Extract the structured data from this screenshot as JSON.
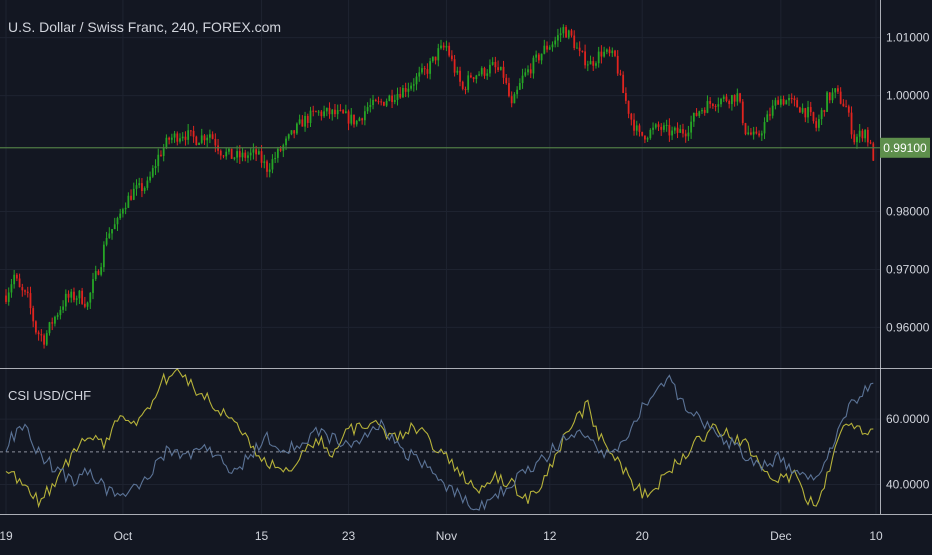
{
  "colors": {
    "background": "#131722",
    "grid": "#1e2330",
    "axis_text": "#d1d4dc",
    "up": "#26a626",
    "down": "#e0241f",
    "price_line": "#4f7a45",
    "price_badge": "#5e8f4c",
    "csi_series_1": "#b6b23a",
    "csi_series_2": "#5b7396",
    "separator": "#d1d4dc"
  },
  "chart_data": [
    {
      "type": "candlestick",
      "title": "U.S. Dollar / Swiss Franc, 240, FOREX.com",
      "last_price_label": "0.99100",
      "last_price": 0.991,
      "ylim": [
        0.953,
        1.0165
      ],
      "y_ticks": [
        {
          "value": 0.96,
          "label": "0.96000"
        },
        {
          "value": 0.97,
          "label": "0.97000"
        },
        {
          "value": 0.98,
          "label": "0.98000"
        },
        {
          "value": 1.0,
          "label": "1.00000"
        },
        {
          "value": 1.01,
          "label": "1.01000"
        }
      ],
      "x_ticks": [
        "19",
        "Oct",
        "15",
        "23",
        "Nov",
        "12",
        "20",
        "Dec",
        "10"
      ],
      "x_tick_index": [
        0,
        43,
        94,
        126,
        162,
        200,
        234,
        285,
        320
      ],
      "series": [
        {
          "x": 0,
          "y": 0.9655
        },
        {
          "x": 3,
          "y": 0.969
        },
        {
          "x": 5,
          "y": 0.9665
        },
        {
          "x": 8,
          "y": 0.965
        },
        {
          "x": 11,
          "y": 0.9595
        },
        {
          "x": 14,
          "y": 0.958
        },
        {
          "x": 17,
          "y": 0.961
        },
        {
          "x": 22,
          "y": 0.965
        },
        {
          "x": 27,
          "y": 0.9655
        },
        {
          "x": 30,
          "y": 0.964
        },
        {
          "x": 32,
          "y": 0.9675
        },
        {
          "x": 35,
          "y": 0.9715
        },
        {
          "x": 37,
          "y": 0.976
        },
        {
          "x": 41,
          "y": 0.978
        },
        {
          "x": 43,
          "y": 0.981
        },
        {
          "x": 47,
          "y": 0.9835
        },
        {
          "x": 52,
          "y": 0.9845
        },
        {
          "x": 56,
          "y": 0.9895
        },
        {
          "x": 60,
          "y": 0.9925
        },
        {
          "x": 65,
          "y": 0.9935
        },
        {
          "x": 70,
          "y": 0.9925
        },
        {
          "x": 75,
          "y": 0.9935
        },
        {
          "x": 79,
          "y": 0.9905
        },
        {
          "x": 83,
          "y": 0.9895
        },
        {
          "x": 87,
          "y": 0.9895
        },
        {
          "x": 92,
          "y": 0.99
        },
        {
          "x": 96,
          "y": 0.9875
        },
        {
          "x": 100,
          "y": 0.99
        },
        {
          "x": 104,
          "y": 0.9925
        },
        {
          "x": 109,
          "y": 0.9955
        },
        {
          "x": 114,
          "y": 0.997
        },
        {
          "x": 119,
          "y": 0.997
        },
        {
          "x": 124,
          "y": 0.9965
        },
        {
          "x": 129,
          "y": 0.9955
        },
        {
          "x": 133,
          "y": 0.998
        },
        {
          "x": 137,
          "y": 0.9985
        },
        {
          "x": 142,
          "y": 1.0
        },
        {
          "x": 146,
          "y": 1.001
        },
        {
          "x": 150,
          "y": 1.0025
        },
        {
          "x": 155,
          "y": 1.0045
        },
        {
          "x": 159,
          "y": 1.0075
        },
        {
          "x": 162,
          "y": 1.0085
        },
        {
          "x": 165,
          "y": 1.0045
        },
        {
          "x": 168,
          "y": 1.001
        },
        {
          "x": 171,
          "y": 1.0035
        },
        {
          "x": 175,
          "y": 1.004
        },
        {
          "x": 179,
          "y": 1.005
        },
        {
          "x": 183,
          "y": 1.0035
        },
        {
          "x": 186,
          "y": 0.998
        },
        {
          "x": 190,
          "y": 1.003
        },
        {
          "x": 194,
          "y": 1.0055
        },
        {
          "x": 198,
          "y": 1.008
        },
        {
          "x": 202,
          "y": 1.0095
        },
        {
          "x": 205,
          "y": 1.0115
        },
        {
          "x": 208,
          "y": 1.01
        },
        {
          "x": 211,
          "y": 1.007
        },
        {
          "x": 215,
          "y": 1.0055
        },
        {
          "x": 219,
          "y": 1.0075
        },
        {
          "x": 224,
          "y": 1.0065
        },
        {
          "x": 227,
          "y": 1.0005
        },
        {
          "x": 230,
          "y": 0.996
        },
        {
          "x": 233,
          "y": 0.993
        },
        {
          "x": 236,
          "y": 0.9935
        },
        {
          "x": 240,
          "y": 0.9945
        },
        {
          "x": 245,
          "y": 0.9935
        },
        {
          "x": 250,
          "y": 0.994
        },
        {
          "x": 255,
          "y": 0.9975
        },
        {
          "x": 260,
          "y": 0.999
        },
        {
          "x": 265,
          "y": 0.9995
        },
        {
          "x": 269,
          "y": 1.0
        },
        {
          "x": 272,
          "y": 0.994
        },
        {
          "x": 276,
          "y": 0.9925
        },
        {
          "x": 280,
          "y": 0.996
        },
        {
          "x": 284,
          "y": 0.9995
        },
        {
          "x": 288,
          "y": 0.999
        },
        {
          "x": 292,
          "y": 0.998
        },
        {
          "x": 295,
          "y": 0.997
        },
        {
          "x": 298,
          "y": 0.9945
        },
        {
          "x": 302,
          "y": 0.9995
        },
        {
          "x": 305,
          "y": 1.0005
        },
        {
          "x": 309,
          "y": 0.998
        },
        {
          "x": 312,
          "y": 0.9925
        },
        {
          "x": 316,
          "y": 0.994
        },
        {
          "x": 318,
          "y": 0.991
        },
        {
          "x": 319,
          "y": 0.9895
        }
      ],
      "candle_count": 320
    },
    {
      "type": "line",
      "title": "CSI USD/CHF",
      "ylim": [
        31,
        75
      ],
      "reference_line": 50,
      "y_ticks": [
        {
          "value": 40,
          "label": "40.0000"
        },
        {
          "value": 60,
          "label": "60.0000"
        }
      ],
      "series": [
        {
          "color_key": "csi_series_1",
          "points": [
            {
              "x": 0,
              "y": 46
            },
            {
              "x": 6,
              "y": 39
            },
            {
              "x": 12,
              "y": 35
            },
            {
              "x": 18,
              "y": 40
            },
            {
              "x": 24,
              "y": 49
            },
            {
              "x": 30,
              "y": 56
            },
            {
              "x": 36,
              "y": 52
            },
            {
              "x": 42,
              "y": 62
            },
            {
              "x": 48,
              "y": 59
            },
            {
              "x": 54,
              "y": 64
            },
            {
              "x": 58,
              "y": 72
            },
            {
              "x": 62,
              "y": 74
            },
            {
              "x": 66,
              "y": 73
            },
            {
              "x": 72,
              "y": 67
            },
            {
              "x": 78,
              "y": 64
            },
            {
              "x": 84,
              "y": 58
            },
            {
              "x": 90,
              "y": 52
            },
            {
              "x": 96,
              "y": 47
            },
            {
              "x": 102,
              "y": 43
            },
            {
              "x": 108,
              "y": 48
            },
            {
              "x": 114,
              "y": 54
            },
            {
              "x": 120,
              "y": 50
            },
            {
              "x": 126,
              "y": 56
            },
            {
              "x": 132,
              "y": 59
            },
            {
              "x": 138,
              "y": 57
            },
            {
              "x": 144,
              "y": 54
            },
            {
              "x": 150,
              "y": 58
            },
            {
              "x": 156,
              "y": 53
            },
            {
              "x": 162,
              "y": 48
            },
            {
              "x": 168,
              "y": 43
            },
            {
              "x": 174,
              "y": 39
            },
            {
              "x": 180,
              "y": 42
            },
            {
              "x": 186,
              "y": 40
            },
            {
              "x": 192,
              "y": 36
            },
            {
              "x": 198,
              "y": 41
            },
            {
              "x": 204,
              "y": 52
            },
            {
              "x": 210,
              "y": 61
            },
            {
              "x": 214,
              "y": 64
            },
            {
              "x": 218,
              "y": 55
            },
            {
              "x": 224,
              "y": 48
            },
            {
              "x": 230,
              "y": 41
            },
            {
              "x": 236,
              "y": 36
            },
            {
              "x": 242,
              "y": 42
            },
            {
              "x": 248,
              "y": 48
            },
            {
              "x": 254,
              "y": 53
            },
            {
              "x": 260,
              "y": 57
            },
            {
              "x": 266,
              "y": 55
            },
            {
              "x": 272,
              "y": 52
            },
            {
              "x": 278,
              "y": 46
            },
            {
              "x": 284,
              "y": 41
            },
            {
              "x": 290,
              "y": 43
            },
            {
              "x": 294,
              "y": 36
            },
            {
              "x": 298,
              "y": 33
            },
            {
              "x": 302,
              "y": 42
            },
            {
              "x": 306,
              "y": 53
            },
            {
              "x": 310,
              "y": 59
            },
            {
              "x": 314,
              "y": 56
            },
            {
              "x": 319,
              "y": 57
            }
          ]
        },
        {
          "color_key": "csi_series_2",
          "points": [
            {
              "x": 0,
              "y": 52
            },
            {
              "x": 6,
              "y": 58
            },
            {
              "x": 12,
              "y": 50
            },
            {
              "x": 18,
              "y": 45
            },
            {
              "x": 24,
              "y": 41
            },
            {
              "x": 30,
              "y": 44
            },
            {
              "x": 36,
              "y": 39
            },
            {
              "x": 42,
              "y": 36
            },
            {
              "x": 48,
              "y": 39
            },
            {
              "x": 54,
              "y": 45
            },
            {
              "x": 60,
              "y": 51
            },
            {
              "x": 66,
              "y": 48
            },
            {
              "x": 72,
              "y": 52
            },
            {
              "x": 78,
              "y": 48
            },
            {
              "x": 84,
              "y": 44
            },
            {
              "x": 90,
              "y": 49
            },
            {
              "x": 96,
              "y": 54
            },
            {
              "x": 102,
              "y": 50
            },
            {
              "x": 108,
              "y": 53
            },
            {
              "x": 114,
              "y": 56
            },
            {
              "x": 120,
              "y": 54
            },
            {
              "x": 126,
              "y": 51
            },
            {
              "x": 132,
              "y": 55
            },
            {
              "x": 138,
              "y": 58
            },
            {
              "x": 144,
              "y": 52
            },
            {
              "x": 150,
              "y": 48
            },
            {
              "x": 156,
              "y": 45
            },
            {
              "x": 162,
              "y": 40
            },
            {
              "x": 168,
              "y": 36
            },
            {
              "x": 174,
              "y": 33
            },
            {
              "x": 180,
              "y": 36
            },
            {
              "x": 186,
              "y": 41
            },
            {
              "x": 192,
              "y": 45
            },
            {
              "x": 198,
              "y": 48
            },
            {
              "x": 204,
              "y": 53
            },
            {
              "x": 210,
              "y": 56
            },
            {
              "x": 216,
              "y": 52
            },
            {
              "x": 222,
              "y": 49
            },
            {
              "x": 228,
              "y": 55
            },
            {
              "x": 234,
              "y": 63
            },
            {
              "x": 240,
              "y": 70
            },
            {
              "x": 244,
              "y": 72
            },
            {
              "x": 248,
              "y": 66
            },
            {
              "x": 254,
              "y": 61
            },
            {
              "x": 260,
              "y": 56
            },
            {
              "x": 266,
              "y": 53
            },
            {
              "x": 272,
              "y": 49
            },
            {
              "x": 278,
              "y": 45
            },
            {
              "x": 284,
              "y": 48
            },
            {
              "x": 290,
              "y": 44
            },
            {
              "x": 296,
              "y": 42
            },
            {
              "x": 302,
              "y": 47
            },
            {
              "x": 306,
              "y": 56
            },
            {
              "x": 310,
              "y": 63
            },
            {
              "x": 314,
              "y": 68
            },
            {
              "x": 319,
              "y": 71
            }
          ]
        }
      ]
    }
  ]
}
